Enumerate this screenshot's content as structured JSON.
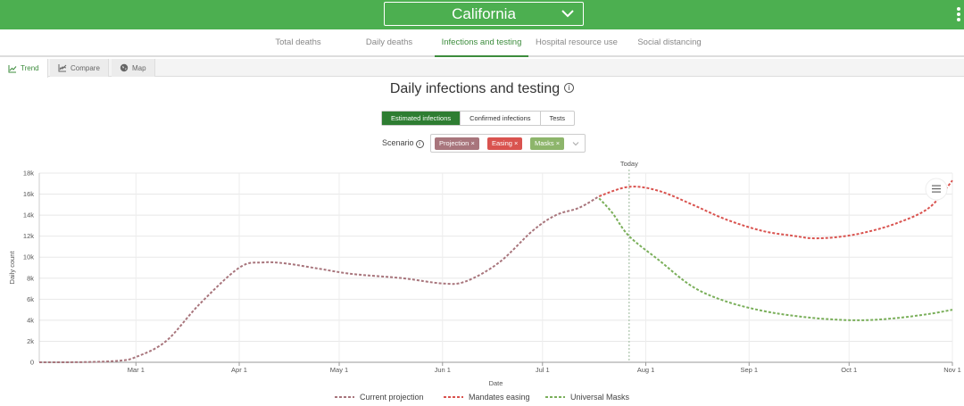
{
  "header": {
    "state_label": "California"
  },
  "nav": {
    "tabs": [
      {
        "label": "Total deaths"
      },
      {
        "label": "Daily deaths"
      },
      {
        "label": "Infections and testing"
      },
      {
        "label": "Hospital resource use"
      },
      {
        "label": "Social distancing"
      }
    ],
    "active_index": 2
  },
  "views": {
    "tabs": [
      {
        "label": "Trend",
        "icon": "line-chart-icon"
      },
      {
        "label": "Compare",
        "icon": "compare-chart-icon"
      },
      {
        "label": "Map",
        "icon": "globe-icon"
      }
    ],
    "active_index": 0
  },
  "title": "Daily infections and testing",
  "toggle": {
    "options": [
      "Estimated infections",
      "Confirmed infections",
      "Tests"
    ],
    "active_index": 0
  },
  "scenario": {
    "label": "Scenario",
    "chips": [
      {
        "label": "Projection",
        "color": "#a8757c"
      },
      {
        "label": "Easing",
        "color": "#d9534f"
      },
      {
        "label": "Masks",
        "color": "#8db56b"
      }
    ]
  },
  "chart_data": {
    "type": "line",
    "xlabel": "Date",
    "ylabel": "Daily count",
    "ylim": [
      0,
      18000
    ],
    "yticks": [
      "0",
      "2k",
      "4k",
      "6k",
      "8k",
      "10k",
      "12k",
      "14k",
      "16k",
      "18k"
    ],
    "xticks": [
      "Mar 1",
      "Apr 1",
      "May 1",
      "Jun 1",
      "Jul 1",
      "Aug 1",
      "Sep 1",
      "Oct 1",
      "Nov 1"
    ],
    "today_label": "Today",
    "today_date": "Jul 27",
    "grid": true,
    "legend_position": "bottom",
    "series": [
      {
        "name": "Current projection",
        "color": "#a8757c",
        "points": [
          [
            "Feb 1",
            0
          ],
          [
            "Feb 15",
            20
          ],
          [
            "Feb 25",
            150
          ],
          [
            "Mar 1",
            500
          ],
          [
            "Mar 10",
            2000
          ],
          [
            "Mar 20",
            5500
          ],
          [
            "Apr 1",
            9000
          ],
          [
            "Apr 8",
            9500
          ],
          [
            "Apr 15",
            9400
          ],
          [
            "Apr 25",
            8900
          ],
          [
            "May 5",
            8400
          ],
          [
            "May 20",
            8000
          ],
          [
            "Jun 1",
            7500
          ],
          [
            "Jun 8",
            7700
          ],
          [
            "Jun 18",
            9500
          ],
          [
            "Jun 28",
            12500
          ],
          [
            "Jul 5",
            14000
          ],
          [
            "Jul 12",
            14700
          ],
          [
            "Jul 18",
            15800
          ]
        ]
      },
      {
        "name": "Mandates easing",
        "color": "#d9534f",
        "points": [
          [
            "Jul 18",
            15800
          ],
          [
            "Jul 27",
            16700
          ],
          [
            "Aug 5",
            16300
          ],
          [
            "Aug 15",
            15000
          ],
          [
            "Aug 25",
            13600
          ],
          [
            "Sep 5",
            12500
          ],
          [
            "Sep 15",
            12000
          ],
          [
            "Sep 20",
            11800
          ],
          [
            "Sep 27",
            11900
          ],
          [
            "Oct 5",
            12300
          ],
          [
            "Oct 15",
            13200
          ],
          [
            "Oct 25",
            14700
          ],
          [
            "Nov 1",
            17300
          ]
        ]
      },
      {
        "name": "Universal Masks",
        "color": "#7aaf5a",
        "points": [
          [
            "Jul 18",
            15600
          ],
          [
            "Jul 22",
            14200
          ],
          [
            "Jul 27",
            12000
          ],
          [
            "Aug 5",
            9700
          ],
          [
            "Aug 15",
            7200
          ],
          [
            "Aug 25",
            5800
          ],
          [
            "Sep 5",
            4900
          ],
          [
            "Sep 15",
            4400
          ],
          [
            "Sep 25",
            4100
          ],
          [
            "Oct 5",
            4000
          ],
          [
            "Oct 15",
            4200
          ],
          [
            "Oct 25",
            4600
          ],
          [
            "Nov 1",
            5000
          ]
        ]
      }
    ]
  }
}
